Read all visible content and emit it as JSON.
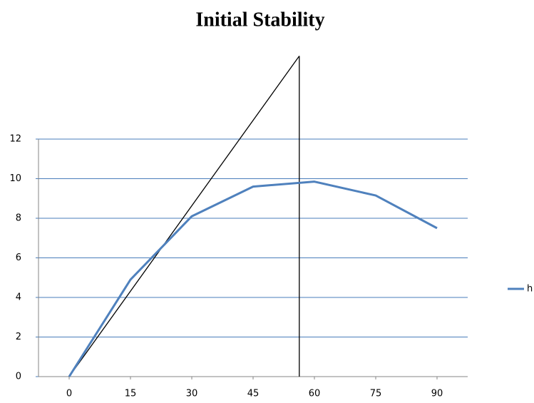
{
  "chart_data": {
    "type": "line",
    "title": "Initial Stability",
    "x": [
      0,
      15,
      30,
      45,
      60,
      75,
      90
    ],
    "series": [
      {
        "name": "h",
        "color": "#4f81bd",
        "values": [
          0,
          4.9,
          8.1,
          9.6,
          9.85,
          9.15,
          7.5
        ]
      }
    ],
    "lines": [
      {
        "color": "#000000",
        "x": [
          0,
          56.3
        ],
        "values": [
          0,
          16.2
        ]
      },
      {
        "color": "#000000",
        "x": [
          56.3,
          56.3
        ],
        "values": [
          0,
          16.2
        ]
      }
    ],
    "xlim": [
      -7.5,
      97.5
    ],
    "xticks": [
      0,
      15,
      30,
      45,
      60,
      75,
      90
    ],
    "ylim": [
      0,
      12
    ],
    "yticks": [
      0,
      2,
      4,
      6,
      8,
      10,
      12
    ],
    "grid": true,
    "grid_color": "#4a7ebb",
    "legend": "right"
  }
}
